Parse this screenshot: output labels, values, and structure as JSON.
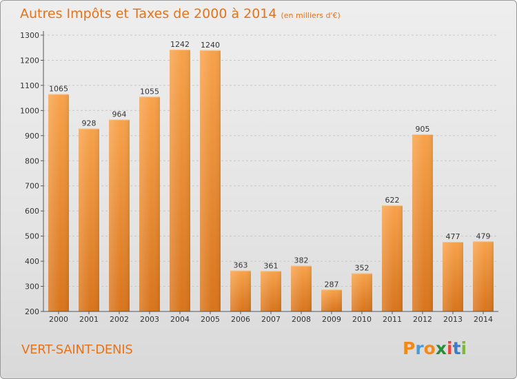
{
  "title": "Autres Impôts et Taxes de 2000 à 2014",
  "subtitle": "(en milliers d'€)",
  "place_name": "VERT-SAINT-DENIS",
  "logo": {
    "letters": [
      "P",
      "r",
      "o",
      "x",
      "i",
      "t",
      "i"
    ],
    "colors": [
      "#f18a1a",
      "#4a9bd6",
      "#f18a1a",
      "#2a8c3a",
      "#e9443a",
      "#3d7dc6",
      "#7cb83a"
    ]
  },
  "colors": {
    "bar_light": "#f7a24b",
    "bar_dark": "#d8741c",
    "grid": "#c8c8c8",
    "title": "#e5731b"
  },
  "chart_data": {
    "type": "bar",
    "categories": [
      "2000",
      "2001",
      "2002",
      "2003",
      "2004",
      "2005",
      "2006",
      "2007",
      "2008",
      "2009",
      "2010",
      "2011",
      "2012",
      "2013",
      "2014"
    ],
    "values": [
      1065,
      928,
      964,
      1055,
      1242,
      1240,
      363,
      361,
      382,
      287,
      352,
      622,
      905,
      477,
      479
    ],
    "title": "Autres Impôts et Taxes de 2000 à 2014",
    "ylim": [
      200,
      1300
    ],
    "yticks": [
      200,
      300,
      400,
      500,
      600,
      700,
      800,
      900,
      1000,
      1100,
      1200,
      1300
    ],
    "grid": true,
    "legend": "none"
  }
}
